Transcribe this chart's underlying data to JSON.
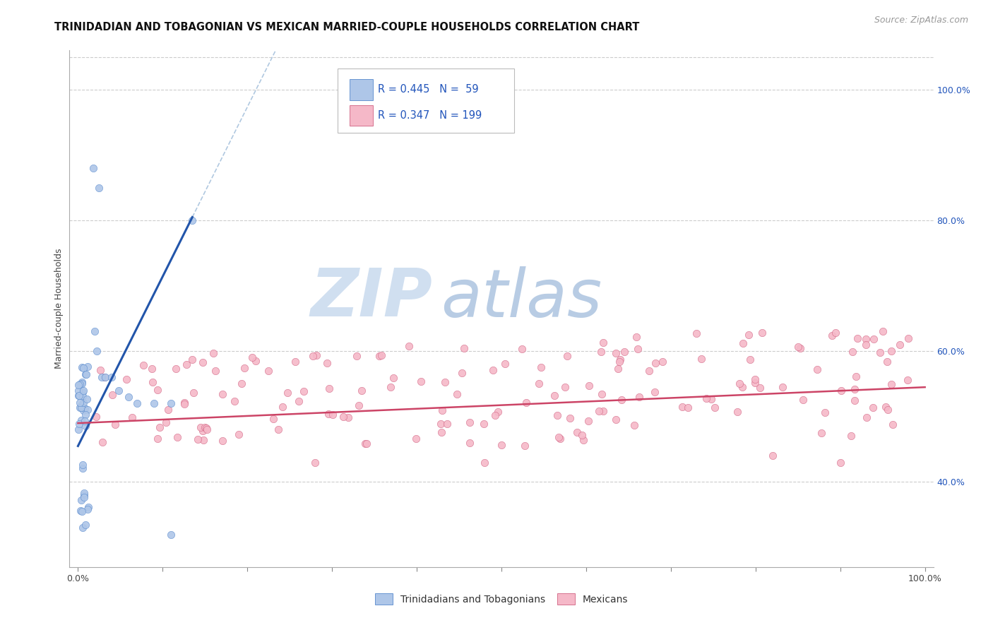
{
  "title": "TRINIDADIAN AND TOBAGONIAN VS MEXICAN MARRIED-COUPLE HOUSEHOLDS CORRELATION CHART",
  "source": "Source: ZipAtlas.com",
  "ylabel": "Married-couple Households",
  "blue_R": 0.445,
  "blue_N": 59,
  "pink_R": 0.347,
  "pink_N": 199,
  "blue_color": "#aec6e8",
  "pink_color": "#f5b8c8",
  "blue_edge_color": "#5588cc",
  "pink_edge_color": "#d06080",
  "blue_line_color": "#2255aa",
  "pink_line_color": "#cc4466",
  "dash_line_color": "#b0c8e0",
  "watermark_zip": "ZIP",
  "watermark_atlas": "atlas",
  "watermark_color_zip": "#d0dff0",
  "watermark_color_atlas": "#b8cce4",
  "title_fontsize": 10.5,
  "source_fontsize": 9,
  "legend_text_color": "#2255bb",
  "xtick_labels": [
    "0.0%",
    "",
    "",
    "",
    "",
    "",
    "",
    "",
    "",
    "",
    "100.0%"
  ],
  "ytick_right_labels": [
    "40.0%",
    "60.0%",
    "80.0%",
    "100.0%"
  ],
  "ytick_right_vals": [
    0.4,
    0.6,
    0.8,
    1.0
  ],
  "xlim": [
    -0.01,
    1.01
  ],
  "ylim": [
    0.27,
    1.06
  ]
}
